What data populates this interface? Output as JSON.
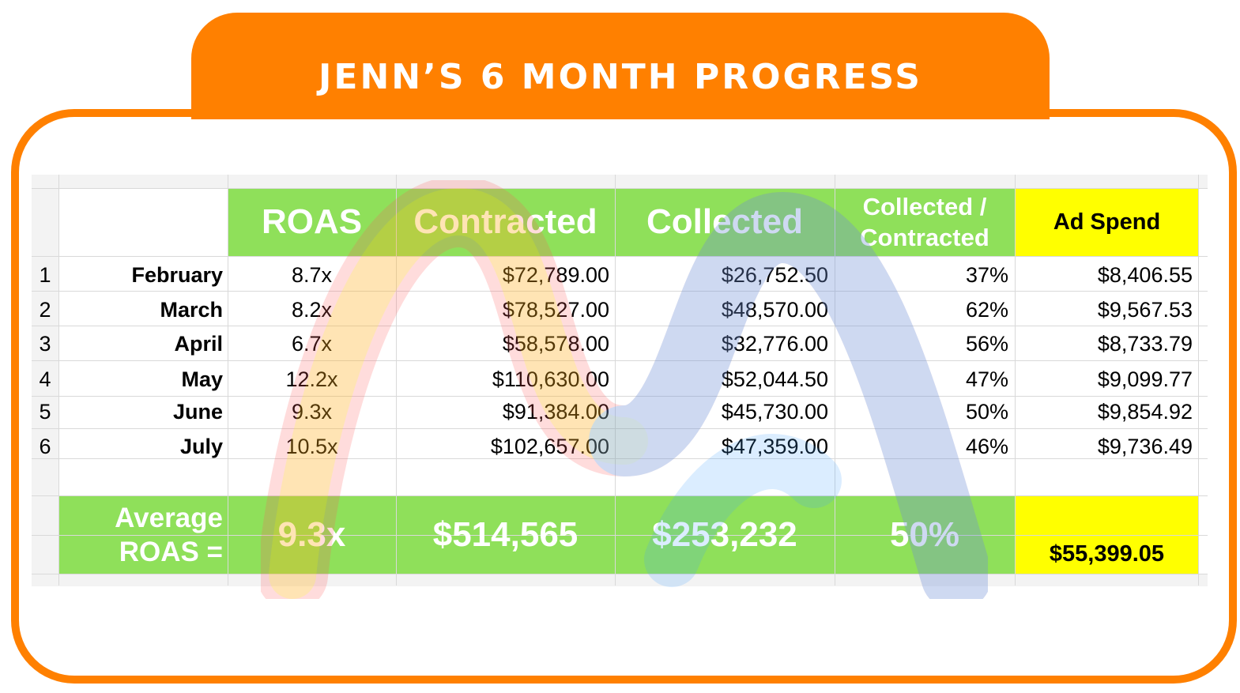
{
  "title": "JENN’S 6 MONTH PROGRESS",
  "colors": {
    "accent": "#ff8000",
    "header_green": "#8fe05a",
    "ad_spend_yellow": "#ffff00"
  },
  "table": {
    "headers": {
      "roas": "ROAS",
      "contracted": "Contracted",
      "collected": "Collected",
      "ratio_line1": "Collected /",
      "ratio_line2": "Contracted",
      "ad_spend": "Ad Spend"
    },
    "rows": [
      {
        "num": "1",
        "month": "February",
        "roas": "8.7x",
        "contracted": "$72,789.00",
        "collected": "$26,752.50",
        "ratio": "37%",
        "ad_spend": "$8,406.55"
      },
      {
        "num": "2",
        "month": "March",
        "roas": "8.2x",
        "contracted": "$78,527.00",
        "collected": "$48,570.00",
        "ratio": "62%",
        "ad_spend": "$9,567.53"
      },
      {
        "num": "3",
        "month": "April",
        "roas": "6.7x",
        "contracted": "$58,578.00",
        "collected": "$32,776.00",
        "ratio": "56%",
        "ad_spend": "$8,733.79"
      },
      {
        "num": "4",
        "month": "May",
        "roas": "12.2x",
        "contracted": "$110,630.00",
        "collected": "$52,044.50",
        "ratio": "47%",
        "ad_spend": "$9,099.77"
      },
      {
        "num": "5",
        "month": "June",
        "roas": "9.3x",
        "contracted": "$91,384.00",
        "collected": "$45,730.00",
        "ratio": "50%",
        "ad_spend": "$9,854.92"
      },
      {
        "num": "6",
        "month": "July",
        "roas": "10.5x",
        "contracted": "$102,657.00",
        "collected": "$47,359.00",
        "ratio": "46%",
        "ad_spend": "$9,736.49"
      }
    ],
    "average": {
      "label_line1": "Average",
      "label_line2": "ROAS =",
      "roas": "9.3x",
      "contracted": "$514,565",
      "collected": "$253,232",
      "ratio": "50%",
      "ad_spend": "$55,399.05"
    }
  }
}
